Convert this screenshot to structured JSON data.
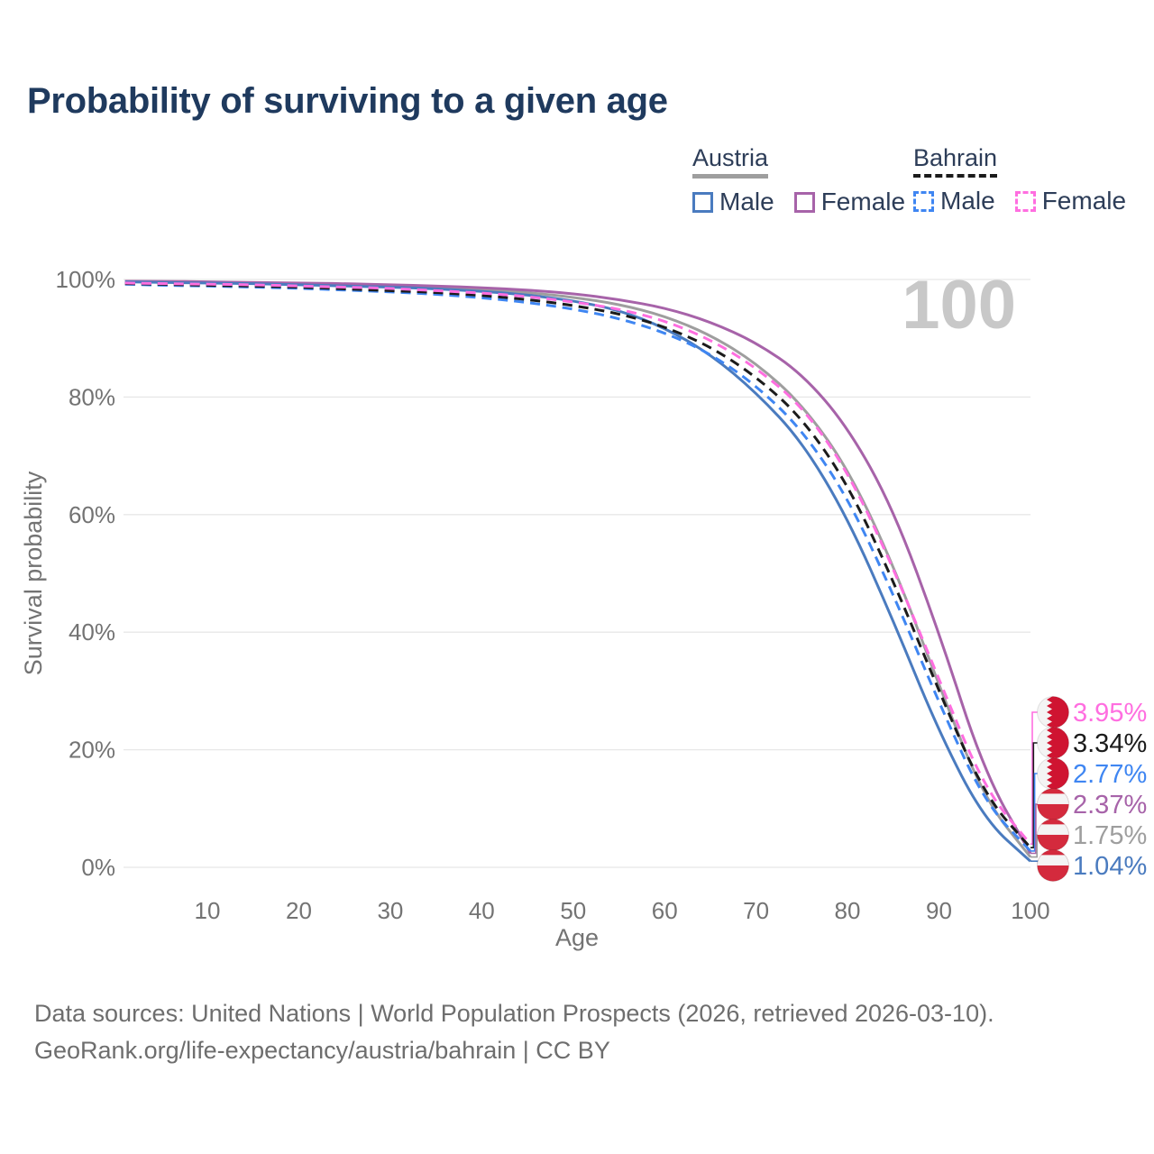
{
  "title": "Probability of surviving to a given age",
  "legend": {
    "austria": {
      "label": "Austria",
      "male_label": "Male",
      "female_label": "Female"
    },
    "bahrain": {
      "label": "Bahrain",
      "male_label": "Male",
      "female_label": "Female"
    }
  },
  "watermark_age": "100",
  "footer": {
    "line1": "Data sources: United Nations | World Population Prospects (2026, retrieved 2026-03-10).",
    "line2": "GeoRank.org/life-expectancy/austria/bahrain | CC BY"
  },
  "colors": {
    "title_text": "#1f3a5e",
    "legend_text": "#2d3d58",
    "tick_text": "#737373",
    "gridline": "#e7e7e7",
    "watermark": "#c8c8c8",
    "footer_text": "#6e6e6e",
    "flag_bahrain_red": "#cf1431",
    "flag_austria_red": "#d42a3d",
    "flag_white": "#f4f4f4"
  },
  "chart_data": {
    "type": "line",
    "title": "Probability of surviving to a given age",
    "xlabel": "Age",
    "ylabel": "Survival probability",
    "xlim": [
      0,
      100
    ],
    "ylim": [
      0,
      100
    ],
    "grid": "horizontal",
    "legend_position": "top-right",
    "hover_age_indicator": "100",
    "x_tick_values": [
      10,
      20,
      30,
      40,
      50,
      60,
      70,
      80,
      90,
      100
    ],
    "x_tick_labels": [
      "10",
      "20",
      "30",
      "40",
      "50",
      "60",
      "70",
      "80",
      "90",
      "100"
    ],
    "y_tick_values": [
      0,
      20,
      40,
      60,
      80,
      100
    ],
    "y_tick_labels": [
      "0%",
      "20%",
      "40%",
      "60%",
      "80%",
      "100%"
    ],
    "x": [
      1,
      5,
      10,
      15,
      20,
      25,
      30,
      35,
      40,
      45,
      50,
      55,
      60,
      65,
      70,
      75,
      80,
      85,
      90,
      95,
      100
    ],
    "series": [
      {
        "id": "austria-total",
        "name": "Austria (both sexes)",
        "country": "Austria",
        "sex": "Both",
        "style": "solid",
        "color": "#9e9e9e",
        "flag": "austria",
        "end_value": 1.75,
        "end_label": "1.75%",
        "values": [
          99.7,
          99.6,
          99.5,
          99.4,
          99.3,
          99.1,
          98.9,
          98.6,
          98.3,
          97.8,
          97.0,
          95.8,
          93.8,
          90.6,
          85.8,
          78.8,
          68.0,
          51.5,
          31.0,
          11.5,
          1.75
        ]
      },
      {
        "id": "austria-female",
        "name": "Austria Female",
        "country": "Austria",
        "sex": "Female",
        "style": "solid",
        "color": "#a763a9",
        "flag": "austria",
        "end_value": 2.37,
        "end_label": "2.37%",
        "values": [
          99.7,
          99.7,
          99.6,
          99.5,
          99.4,
          99.3,
          99.1,
          98.9,
          98.6,
          98.2,
          97.6,
          96.6,
          95.2,
          92.8,
          89.3,
          84.0,
          75.0,
          61.0,
          40.0,
          16.0,
          2.37
        ]
      },
      {
        "id": "austria-male",
        "name": "Austria Male",
        "country": "Austria",
        "sex": "Male",
        "style": "solid",
        "color": "#4a7bbf",
        "flag": "austria",
        "end_value": 1.04,
        "end_label": "1.04%",
        "values": [
          99.6,
          99.5,
          99.4,
          99.3,
          99.1,
          98.9,
          98.7,
          98.4,
          98.0,
          97.4,
          96.4,
          94.8,
          91.8,
          87.3,
          80.8,
          72.5,
          59.5,
          42.0,
          23.0,
          8.0,
          1.04
        ]
      },
      {
        "id": "bahrain-male",
        "name": "Bahrain Male",
        "country": "Bahrain",
        "sex": "Male",
        "style": "dashed",
        "color": "#3f86f2",
        "flag": "bahrain",
        "end_value": 2.77,
        "end_label": "2.77%",
        "values": [
          99.2,
          99.0,
          98.9,
          98.7,
          98.5,
          98.2,
          97.9,
          97.5,
          96.9,
          96.1,
          95.0,
          93.4,
          91.0,
          87.4,
          82.0,
          74.5,
          63.0,
          46.5,
          28.0,
          11.0,
          2.77
        ]
      },
      {
        "id": "bahrain-total",
        "name": "Bahrain (both sexes)",
        "country": "Bahrain",
        "sex": "Both",
        "style": "dashed",
        "color": "#1b1b1b",
        "flag": "bahrain",
        "end_value": 3.34,
        "end_label": "3.34%",
        "values": [
          99.3,
          99.2,
          99.0,
          98.9,
          98.7,
          98.4,
          98.1,
          97.8,
          97.3,
          96.6,
          95.6,
          94.2,
          92.0,
          88.6,
          83.5,
          76.5,
          65.3,
          48.8,
          30.0,
          12.2,
          3.34
        ]
      },
      {
        "id": "bahrain-female",
        "name": "Bahrain Female",
        "country": "Bahrain",
        "sex": "Female",
        "style": "dashed",
        "color": "#ff6ee0",
        "flag": "bahrain",
        "end_value": 3.95,
        "end_label": "3.95%",
        "values": [
          99.4,
          99.3,
          99.2,
          99.1,
          98.9,
          98.7,
          98.5,
          98.1,
          97.7,
          97.1,
          96.2,
          95.0,
          93.0,
          89.8,
          85.0,
          78.5,
          67.5,
          51.0,
          32.0,
          13.3,
          3.95
        ]
      }
    ]
  }
}
